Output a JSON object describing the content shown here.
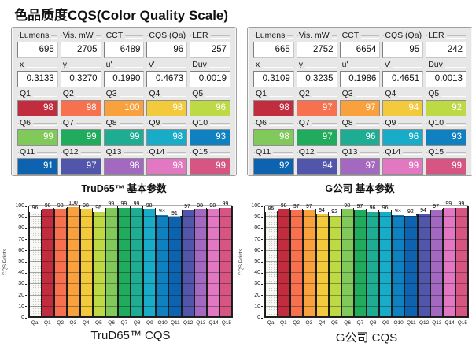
{
  "title": "色品质度CQS(Color Quality Scale)",
  "q_labels": [
    "Q1",
    "Q2",
    "Q3",
    "Q4",
    "Q5",
    "Q6",
    "Q7",
    "Q8",
    "Q9",
    "Q10",
    "Q11",
    "Q12",
    "Q13",
    "Q14",
    "Q15"
  ],
  "q_colors": [
    "#c22c3f",
    "#f8714e",
    "#f9a13c",
    "#f2ca3b",
    "#bdd944",
    "#82c95c",
    "#21ab5c",
    "#1ead93",
    "#18acc9",
    "#0f80c0",
    "#0d63b0",
    "#5156ab",
    "#a369c0",
    "#e378c2",
    "#d75582"
  ],
  "qa_color": "#f7f7f3",
  "panels": [
    {
      "caption": "TruD65™ 基本参数",
      "stats": [
        {
          "label": "Lumens",
          "value": "695"
        },
        {
          "label": "Vis. mW",
          "value": "2705"
        },
        {
          "label": "CCT",
          "value": "6489"
        },
        {
          "label": "CQS (Qa)",
          "value": "96"
        },
        {
          "label": "LER",
          "value": "257"
        }
      ],
      "chromaticity": [
        {
          "label": "x",
          "value": "0.3133"
        },
        {
          "label": "y",
          "value": "0.3270"
        },
        {
          "label": "u'",
          "value": "0.1990"
        },
        {
          "label": "v'",
          "value": "0.4673"
        },
        {
          "label": "Duv",
          "value": "0.0019"
        }
      ],
      "q_values": [
        98,
        98,
        100,
        98,
        96,
        99,
        99,
        99,
        98,
        93,
        91,
        97,
        98,
        98,
        99
      ]
    },
    {
      "caption": "G公司 基本参数",
      "stats": [
        {
          "label": "Lumens",
          "value": "665"
        },
        {
          "label": "Vis. mW",
          "value": "2752"
        },
        {
          "label": "CCT",
          "value": "6654"
        },
        {
          "label": "CQS (Qa)",
          "value": "95"
        },
        {
          "label": "LER",
          "value": "242"
        }
      ],
      "chromaticity": [
        {
          "label": "x",
          "value": "0.3109"
        },
        {
          "label": "y",
          "value": "0.3235"
        },
        {
          "label": "u'",
          "value": "0.1986"
        },
        {
          "label": "v'",
          "value": "0.4651"
        },
        {
          "label": "Duv",
          "value": "0.0013"
        }
      ],
      "q_values": [
        98,
        97,
        97,
        94,
        92,
        98,
        97,
        96,
        96,
        93,
        92,
        94,
        97,
        99,
        99
      ]
    }
  ],
  "chart_data": [
    {
      "type": "bar",
      "title": "TruD65™ CQS",
      "ylabel": "CQS Points",
      "categories": [
        "Qa",
        "Q1",
        "Q2",
        "Q3",
        "Q4",
        "Q5",
        "Q6",
        "Q7",
        "Q8",
        "Q9",
        "Q10",
        "Q11",
        "Q12",
        "Q13",
        "Q14",
        "Q15"
      ],
      "values": [
        96,
        98,
        98,
        100,
        98,
        96,
        99,
        99,
        99,
        98,
        93,
        91,
        97,
        98,
        98,
        99
      ],
      "ylim": [
        0,
        100
      ],
      "ytick_step": 10,
      "grid": true,
      "legend": false,
      "bar_color_note": "Qa dotted light gray; Q1-Q15 use q_colors palette"
    },
    {
      "type": "bar",
      "title": "G公司 CQS",
      "ylabel": "CQS Points",
      "categories": [
        "Qa",
        "Q1",
        "Q2",
        "Q3",
        "Q4",
        "Q5",
        "Q6",
        "Q7",
        "Q8",
        "Q9",
        "Q10",
        "Q11",
        "Q12",
        "Q13",
        "Q14",
        "Q15"
      ],
      "values": [
        95,
        98,
        97,
        97,
        94,
        92,
        98,
        97,
        96,
        96,
        93,
        92,
        94,
        97,
        99,
        99
      ],
      "ylim": [
        0,
        100
      ],
      "ytick_step": 10,
      "grid": true,
      "legend": false,
      "bar_color_note": "Qa dotted light gray; Q1-Q15 use q_colors palette"
    }
  ]
}
